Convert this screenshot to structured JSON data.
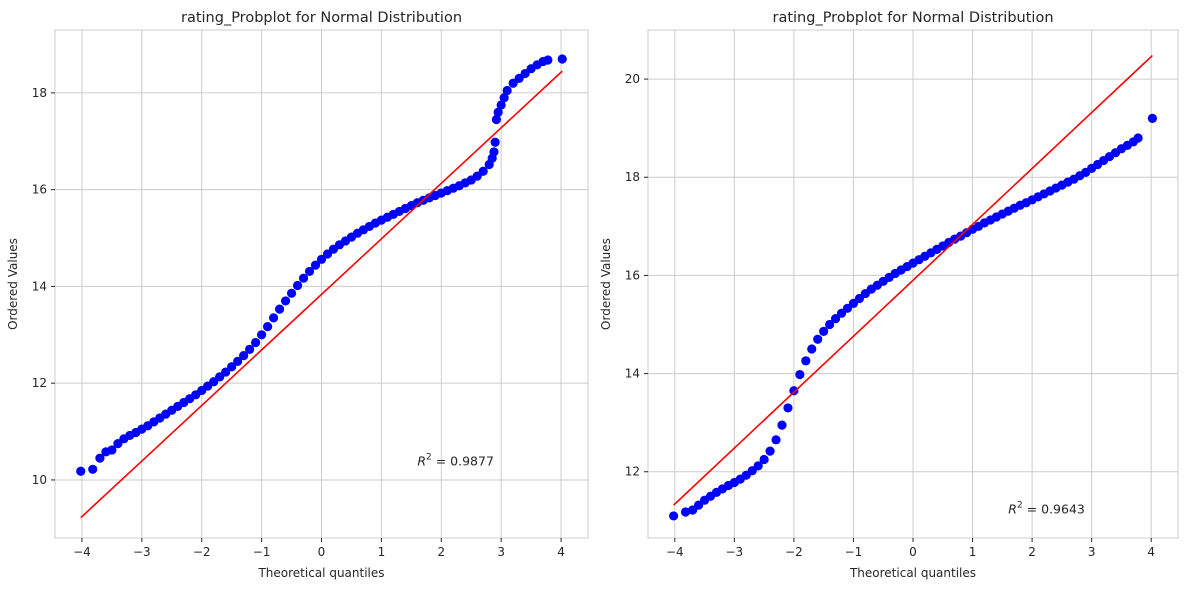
{
  "chart_data": [
    {
      "type": "scatter",
      "title": "rating_Probplot for Normal Distribution",
      "xlabel": "Theoretical quantiles",
      "ylabel": "Ordered Values",
      "xlim": [
        -4.45,
        4.45
      ],
      "ylim": [
        8.8,
        19.3
      ],
      "xticks": [
        -4,
        -3,
        -2,
        -1,
        0,
        1,
        2,
        3,
        4
      ],
      "yticks": [
        10,
        12,
        14,
        16,
        18
      ],
      "xtick_labels": [
        "−4",
        "−3",
        "−2",
        "−1",
        "0",
        "1",
        "2",
        "3",
        "4"
      ],
      "ytick_labels": [
        "10",
        "12",
        "14",
        "16",
        "18"
      ],
      "fit_line": {
        "x": [
          -4.02,
          4.02
        ],
        "y": [
          9.22,
          18.45
        ]
      },
      "points_x": [
        -4.02,
        -3.82,
        -3.7,
        -3.6,
        -3.5,
        -3.4,
        -3.3,
        -3.2,
        -3.1,
        -3.0,
        -2.9,
        -2.8,
        -2.7,
        -2.6,
        -2.5,
        -2.4,
        -2.3,
        -2.2,
        -2.1,
        -2.0,
        -1.9,
        -1.8,
        -1.7,
        -1.6,
        -1.5,
        -1.4,
        -1.3,
        -1.2,
        -1.1,
        -1.0,
        -0.9,
        -0.8,
        -0.7,
        -0.6,
        -0.5,
        -0.4,
        -0.3,
        -0.2,
        -0.1,
        0.0,
        0.1,
        0.2,
        0.3,
        0.4,
        0.5,
        0.6,
        0.7,
        0.8,
        0.9,
        1.0,
        1.1,
        1.2,
        1.3,
        1.4,
        1.5,
        1.6,
        1.7,
        1.8,
        1.9,
        2.0,
        2.1,
        2.2,
        2.3,
        2.4,
        2.5,
        2.6,
        2.7,
        2.8,
        2.85,
        2.88,
        2.9,
        2.92,
        2.95,
        3.0,
        3.05,
        3.1,
        3.2,
        3.3,
        3.4,
        3.5,
        3.6,
        3.7,
        3.78,
        4.02
      ],
      "points_y": [
        10.18,
        10.22,
        10.45,
        10.58,
        10.62,
        10.75,
        10.85,
        10.92,
        10.98,
        11.05,
        11.12,
        11.2,
        11.28,
        11.36,
        11.44,
        11.52,
        11.6,
        11.68,
        11.76,
        11.85,
        11.94,
        12.03,
        12.13,
        12.23,
        12.34,
        12.45,
        12.57,
        12.7,
        12.84,
        13.0,
        13.17,
        13.35,
        13.53,
        13.7,
        13.86,
        14.02,
        14.17,
        14.31,
        14.44,
        14.56,
        14.67,
        14.77,
        14.86,
        14.94,
        15.02,
        15.1,
        15.17,
        15.24,
        15.31,
        15.37,
        15.43,
        15.49,
        15.55,
        15.61,
        15.67,
        15.73,
        15.78,
        15.83,
        15.88,
        15.93,
        15.98,
        16.03,
        16.08,
        16.14,
        16.2,
        16.28,
        16.38,
        16.52,
        16.65,
        16.78,
        16.98,
        17.45,
        17.6,
        17.75,
        17.9,
        18.05,
        18.2,
        18.3,
        18.4,
        18.5,
        18.58,
        18.65,
        18.68,
        18.7
      ],
      "annotation": {
        "x": 1.6,
        "y": 10.3,
        "prefix": "R",
        "sup": "2",
        "text": " = 0.9877"
      }
    },
    {
      "type": "scatter",
      "title": "rating_Probplot for Normal Distribution",
      "xlabel": "Theoretical quantiles",
      "ylabel": "Ordered Values",
      "xlim": [
        -4.45,
        4.45
      ],
      "ylim": [
        10.65,
        21.0
      ],
      "xticks": [
        -4,
        -3,
        -2,
        -1,
        0,
        1,
        2,
        3,
        4
      ],
      "yticks": [
        12,
        14,
        16,
        18,
        20
      ],
      "xtick_labels": [
        "−4",
        "−3",
        "−2",
        "−1",
        "0",
        "1",
        "2",
        "3",
        "4"
      ],
      "ytick_labels": [
        "12",
        "14",
        "16",
        "18",
        "20"
      ],
      "fit_line": {
        "x": [
          -4.02,
          4.02
        ],
        "y": [
          11.32,
          20.48
        ]
      },
      "points_x": [
        -4.02,
        -3.82,
        -3.7,
        -3.6,
        -3.5,
        -3.4,
        -3.3,
        -3.2,
        -3.1,
        -3.0,
        -2.9,
        -2.8,
        -2.7,
        -2.6,
        -2.5,
        -2.4,
        -2.3,
        -2.2,
        -2.1,
        -2.0,
        -1.9,
        -1.8,
        -1.7,
        -1.6,
        -1.5,
        -1.4,
        -1.3,
        -1.2,
        -1.1,
        -1.0,
        -0.9,
        -0.8,
        -0.7,
        -0.6,
        -0.5,
        -0.4,
        -0.3,
        -0.2,
        -0.1,
        0.0,
        0.1,
        0.2,
        0.3,
        0.4,
        0.5,
        0.6,
        0.7,
        0.8,
        0.9,
        1.0,
        1.1,
        1.2,
        1.3,
        1.4,
        1.5,
        1.6,
        1.7,
        1.8,
        1.9,
        2.0,
        2.1,
        2.2,
        2.3,
        2.4,
        2.5,
        2.6,
        2.7,
        2.8,
        2.9,
        3.0,
        3.1,
        3.2,
        3.3,
        3.4,
        3.5,
        3.6,
        3.7,
        3.78,
        4.02
      ],
      "points_y": [
        11.1,
        11.18,
        11.22,
        11.32,
        11.42,
        11.5,
        11.58,
        11.65,
        11.72,
        11.78,
        11.85,
        11.93,
        12.02,
        12.12,
        12.25,
        12.42,
        12.65,
        12.95,
        13.3,
        13.65,
        13.98,
        14.26,
        14.5,
        14.7,
        14.86,
        15.0,
        15.12,
        15.23,
        15.33,
        15.43,
        15.53,
        15.63,
        15.72,
        15.8,
        15.88,
        15.96,
        16.04,
        16.11,
        16.18,
        16.25,
        16.32,
        16.39,
        16.46,
        16.53,
        16.6,
        16.67,
        16.74,
        16.8,
        16.87,
        16.94,
        17.0,
        17.07,
        17.13,
        17.19,
        17.25,
        17.31,
        17.37,
        17.43,
        17.48,
        17.54,
        17.6,
        17.66,
        17.72,
        17.78,
        17.84,
        17.9,
        17.96,
        18.03,
        18.1,
        18.18,
        18.26,
        18.34,
        18.42,
        18.5,
        18.58,
        18.65,
        18.72,
        18.8,
        19.2
      ],
      "annotation": {
        "x": 1.6,
        "y": 11.15,
        "prefix": "R",
        "sup": "2",
        "text": " = 0.9643"
      }
    }
  ],
  "colors": {
    "points": "#0000ff",
    "fit_line": "#ff0000",
    "grid": "#cccccc",
    "spine": "#cccccc",
    "text": "#262626"
  }
}
